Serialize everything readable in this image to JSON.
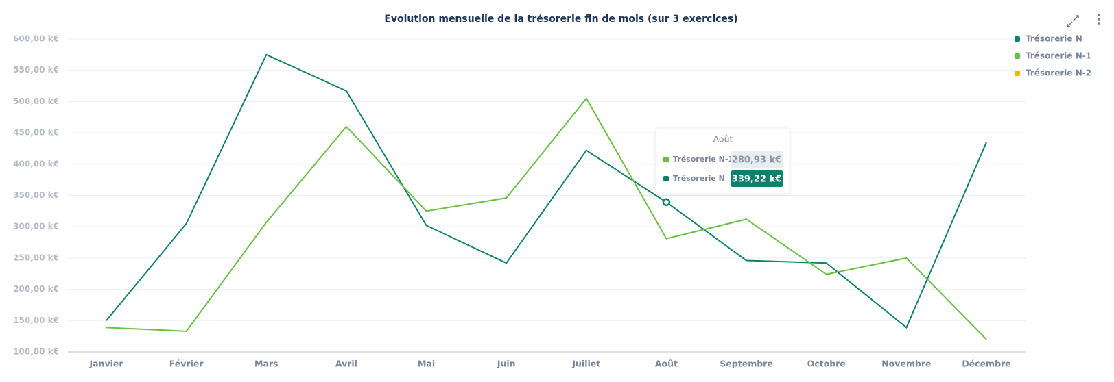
{
  "chart_data": {
    "type": "line",
    "title": "Evolution mensuelle de la trésorerie fin de mois (sur 3 exercices)",
    "categories": [
      "Janvier",
      "Février",
      "Mars",
      "Avril",
      "Mai",
      "Juin",
      "Juillet",
      "Août",
      "Septembre",
      "Octobre",
      "Novembre",
      "Décembre"
    ],
    "series": [
      {
        "name": "Trésorerie N",
        "color": "#11806a",
        "values": [
          150,
          305,
          575,
          517,
          302,
          242,
          422,
          339.22,
          246,
          242,
          139,
          435
        ],
        "value_labels": [
          null,
          null,
          null,
          null,
          null,
          null,
          null,
          "339,22 k€",
          null,
          null,
          null,
          null
        ]
      },
      {
        "name": "Trésorerie N-1",
        "color": "#6abf45",
        "values": [
          139,
          133,
          307,
          460,
          325,
          346,
          505,
          280.93,
          312,
          224,
          250,
          120
        ],
        "value_labels": [
          null,
          null,
          null,
          null,
          null,
          null,
          null,
          "280,93 k€",
          null,
          null,
          null,
          null
        ]
      },
      {
        "name": "Trésorerie N-2",
        "color": "#f5b400",
        "values": [
          null,
          null,
          null,
          null,
          null,
          null,
          null,
          null,
          null,
          null,
          null,
          null
        ]
      }
    ],
    "ylim": [
      100,
      600
    ],
    "yticks": [
      {
        "value": 100,
        "label": "100,00 k€"
      },
      {
        "value": 150,
        "label": "150,00 k€"
      },
      {
        "value": 200,
        "label": "200,00 k€"
      },
      {
        "value": 250,
        "label": "250,00 k€"
      },
      {
        "value": 300,
        "label": "300,00 k€"
      },
      {
        "value": 350,
        "label": "350,00 k€"
      },
      {
        "value": 400,
        "label": "400,00 k€"
      },
      {
        "value": 450,
        "label": "450,00 k€"
      },
      {
        "value": 500,
        "label": "500,00 k€"
      },
      {
        "value": 550,
        "label": "550,00 k€"
      },
      {
        "value": 600,
        "label": "600,00 k€"
      }
    ],
    "grid": true,
    "legend": "top-right"
  }
}
